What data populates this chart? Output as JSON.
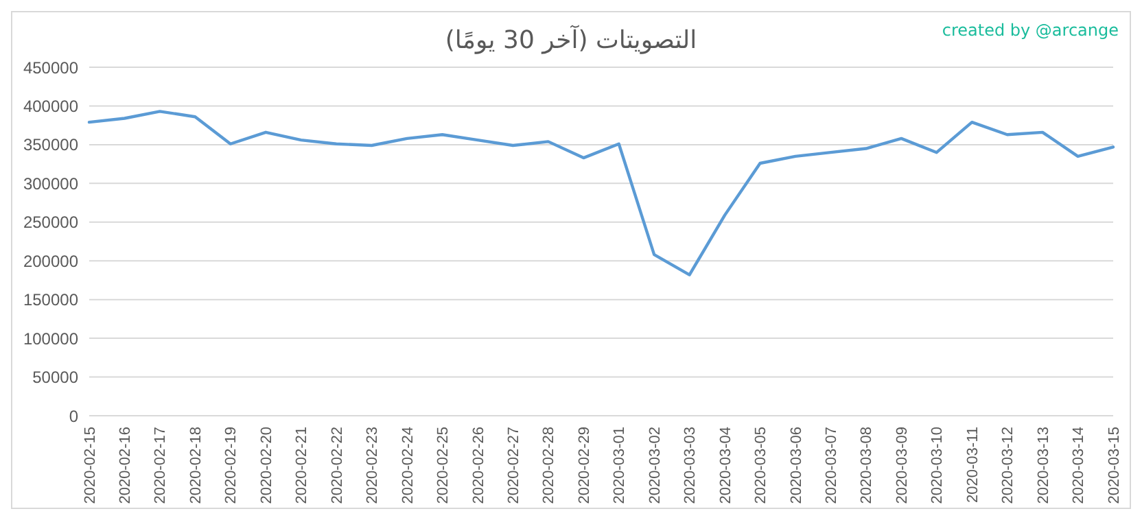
{
  "chart_data": {
    "type": "line",
    "title": "التصويتات (آخر 30 يومًا)",
    "annotations": [
      "created by @arcange"
    ],
    "categories": [
      "2020-02-15",
      "2020-02-16",
      "2020-02-17",
      "2020-02-18",
      "2020-02-19",
      "2020-02-20",
      "2020-02-21",
      "2020-02-22",
      "2020-02-23",
      "2020-02-24",
      "2020-02-25",
      "2020-02-26",
      "2020-02-27",
      "2020-02-28",
      "2020-02-29",
      "2020-03-01",
      "2020-03-02",
      "2020-03-03",
      "2020-03-04",
      "2020-03-05",
      "2020-03-06",
      "2020-03-07",
      "2020-03-08",
      "2020-03-09",
      "2020-03-10",
      "2020-03-11",
      "2020-03-12",
      "2020-03-13",
      "2020-03-14",
      "2020-03-15"
    ],
    "series": [
      {
        "color": "#5b9bd5",
        "values": [
          379000,
          384000,
          393000,
          386000,
          351000,
          366000,
          356000,
          351000,
          349000,
          358000,
          363000,
          356000,
          349000,
          354000,
          333000,
          351000,
          208000,
          182000,
          259000,
          326000,
          335000,
          340000,
          345000,
          358000,
          340000,
          379000,
          363000,
          366000,
          335000,
          347000
        ]
      }
    ],
    "ylim": [
      0,
      450000
    ],
    "yticks": [
      0,
      50000,
      100000,
      150000,
      200000,
      250000,
      300000,
      350000,
      400000,
      450000
    ],
    "grid": "y",
    "marker": "none",
    "line_style": "solid"
  }
}
